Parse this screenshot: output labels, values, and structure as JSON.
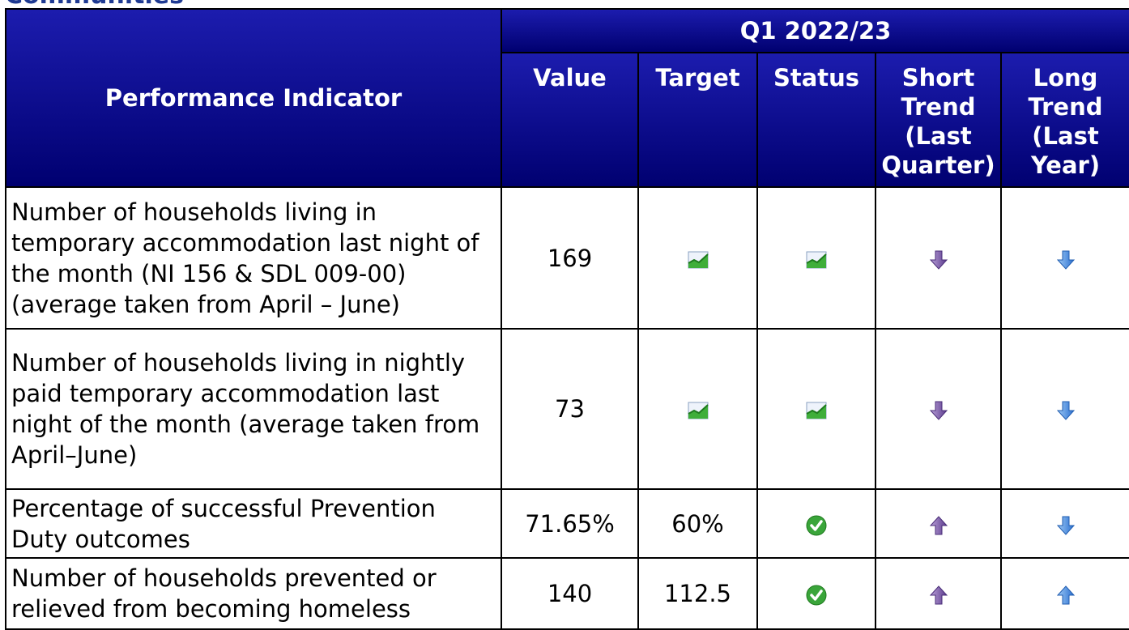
{
  "heading": "Communities",
  "table": {
    "indicator_header": "Performance Indicator",
    "period": "Q1 2022/23",
    "columns": [
      "Value",
      "Target",
      "Status",
      "Short Trend (Last Quarter)",
      "Long Trend (Last Year)"
    ],
    "rows": [
      {
        "indicator": "Number of households living in temporary accommodation last night of the month (NI 156 & SDL 009-00) (average taken from April – June)",
        "value": "169"
      },
      {
        "indicator": "Number of households living in nightly paid temporary accommodation last night of the month (average taken from April–June)",
        "value": "73"
      },
      {
        "indicator": "Percentage of successful Prevention Duty outcomes",
        "value": "71.65%",
        "target": "60%"
      },
      {
        "indicator": "Number of households prevented or relieved from becoming homeless",
        "value": "140",
        "target": "112.5"
      }
    ]
  }
}
